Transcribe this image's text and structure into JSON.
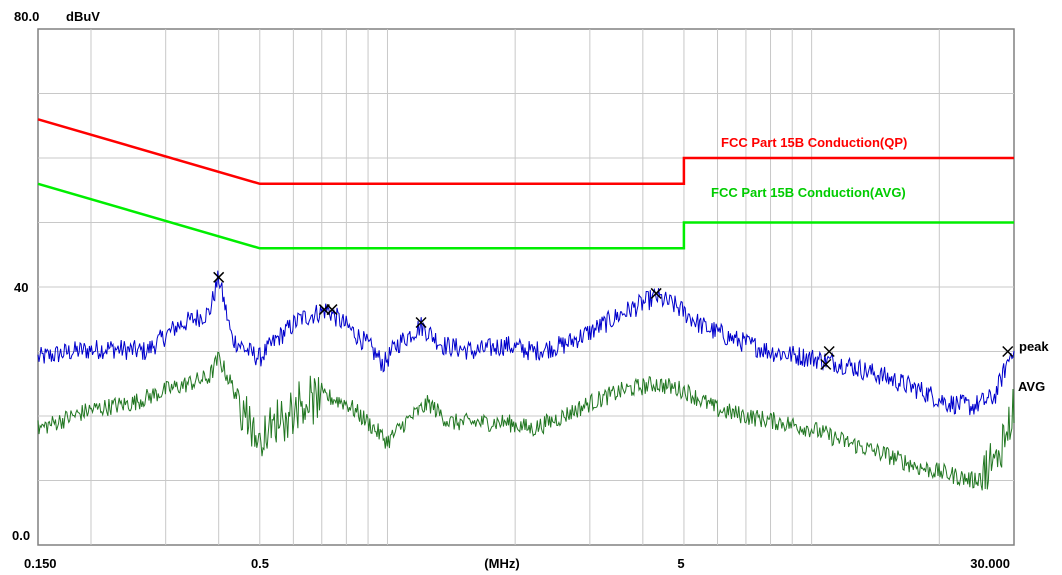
{
  "chart_data": {
    "type": "line",
    "title": "",
    "xlabel": "(MHz)",
    "ylabel": "dBuV",
    "x_scale": "log",
    "xlim": [
      0.15,
      30.0
    ],
    "ylim": [
      0.0,
      80.0
    ],
    "grid": true,
    "x_tick_labels": [
      {
        "value": 0.15,
        "label": "0.150"
      },
      {
        "value": 0.5,
        "label": "0.5"
      },
      {
        "value": 5,
        "label": "5"
      },
      {
        "value": 30,
        "label": "30.000"
      }
    ],
    "y_tick_labels": [
      {
        "value": 80,
        "label": "80.0"
      },
      {
        "value": 40,
        "label": "40"
      },
      {
        "value": 0,
        "label": "0.0"
      }
    ],
    "limit_lines": [
      {
        "name": "FCC Part 15B Conduction(QP)",
        "color": "#ff0000",
        "points": [
          [
            0.15,
            66
          ],
          [
            0.5,
            56
          ],
          [
            5,
            56
          ],
          [
            5,
            60
          ],
          [
            30,
            60
          ]
        ]
      },
      {
        "name": "FCC Part 15B Conduction(AVG)",
        "color": "#00ee00",
        "points": [
          [
            0.15,
            56
          ],
          [
            0.5,
            46
          ],
          [
            5,
            46
          ],
          [
            5,
            50
          ],
          [
            30,
            50
          ]
        ]
      }
    ],
    "series": [
      {
        "name": "peak",
        "color": "#0000cc",
        "points": [
          [
            0.15,
            29
          ],
          [
            0.18,
            30
          ],
          [
            0.22,
            30.5
          ],
          [
            0.27,
            30
          ],
          [
            0.32,
            34
          ],
          [
            0.38,
            36
          ],
          [
            0.4,
            41.5
          ],
          [
            0.43,
            32
          ],
          [
            0.47,
            30
          ],
          [
            0.5,
            29
          ],
          [
            0.55,
            32
          ],
          [
            0.62,
            35
          ],
          [
            0.72,
            36.5
          ],
          [
            0.8,
            34
          ],
          [
            0.9,
            31
          ],
          [
            0.98,
            28
          ],
          [
            1.05,
            31
          ],
          [
            1.2,
            34
          ],
          [
            1.35,
            31
          ],
          [
            1.6,
            30
          ],
          [
            1.9,
            31
          ],
          [
            2.2,
            30
          ],
          [
            2.6,
            31
          ],
          [
            3.0,
            33
          ],
          [
            3.6,
            36
          ],
          [
            4.3,
            38.5
          ],
          [
            4.8,
            37
          ],
          [
            5.5,
            34
          ],
          [
            6.5,
            32
          ],
          [
            8.0,
            30
          ],
          [
            10.0,
            29
          ],
          [
            12.0,
            28
          ],
          [
            15.0,
            26
          ],
          [
            18.0,
            24
          ],
          [
            21.0,
            22
          ],
          [
            24.0,
            21.5
          ],
          [
            27.0,
            23
          ],
          [
            30.0,
            31
          ]
        ]
      },
      {
        "name": "AVG",
        "color": "#227722",
        "points": [
          [
            0.15,
            18
          ],
          [
            0.2,
            21
          ],
          [
            0.25,
            22
          ],
          [
            0.3,
            24
          ],
          [
            0.38,
            26
          ],
          [
            0.4,
            29
          ],
          [
            0.45,
            22
          ],
          [
            0.5,
            16
          ],
          [
            0.55,
            19
          ],
          [
            0.62,
            22
          ],
          [
            0.72,
            23
          ],
          [
            0.8,
            22
          ],
          [
            0.9,
            19
          ],
          [
            1.0,
            16
          ],
          [
            1.1,
            19
          ],
          [
            1.25,
            22
          ],
          [
            1.4,
            19
          ],
          [
            1.6,
            19
          ],
          [
            1.9,
            19
          ],
          [
            2.2,
            18
          ],
          [
            2.6,
            20
          ],
          [
            3.0,
            22
          ],
          [
            3.6,
            24
          ],
          [
            4.3,
            25
          ],
          [
            5.0,
            24
          ],
          [
            6.0,
            21
          ],
          [
            7.0,
            20
          ],
          [
            8.5,
            19
          ],
          [
            10.0,
            18
          ],
          [
            12.0,
            16
          ],
          [
            15.0,
            14
          ],
          [
            18.0,
            12
          ],
          [
            21.0,
            11
          ],
          [
            24.0,
            10
          ],
          [
            27.0,
            12
          ],
          [
            30.0,
            22
          ]
        ]
      }
    ],
    "markers": [
      {
        "x": 0.4,
        "y": 41.5
      },
      {
        "x": 0.71,
        "y": 36.5
      },
      {
        "x": 0.74,
        "y": 36.5
      },
      {
        "x": 1.2,
        "y": 34.5
      },
      {
        "x": 4.3,
        "y": 39.0
      },
      {
        "x": 11.0,
        "y": 30.0
      },
      {
        "x": 10.8,
        "y": 28.0
      },
      {
        "x": 29.0,
        "y": 30.0
      }
    ]
  }
}
